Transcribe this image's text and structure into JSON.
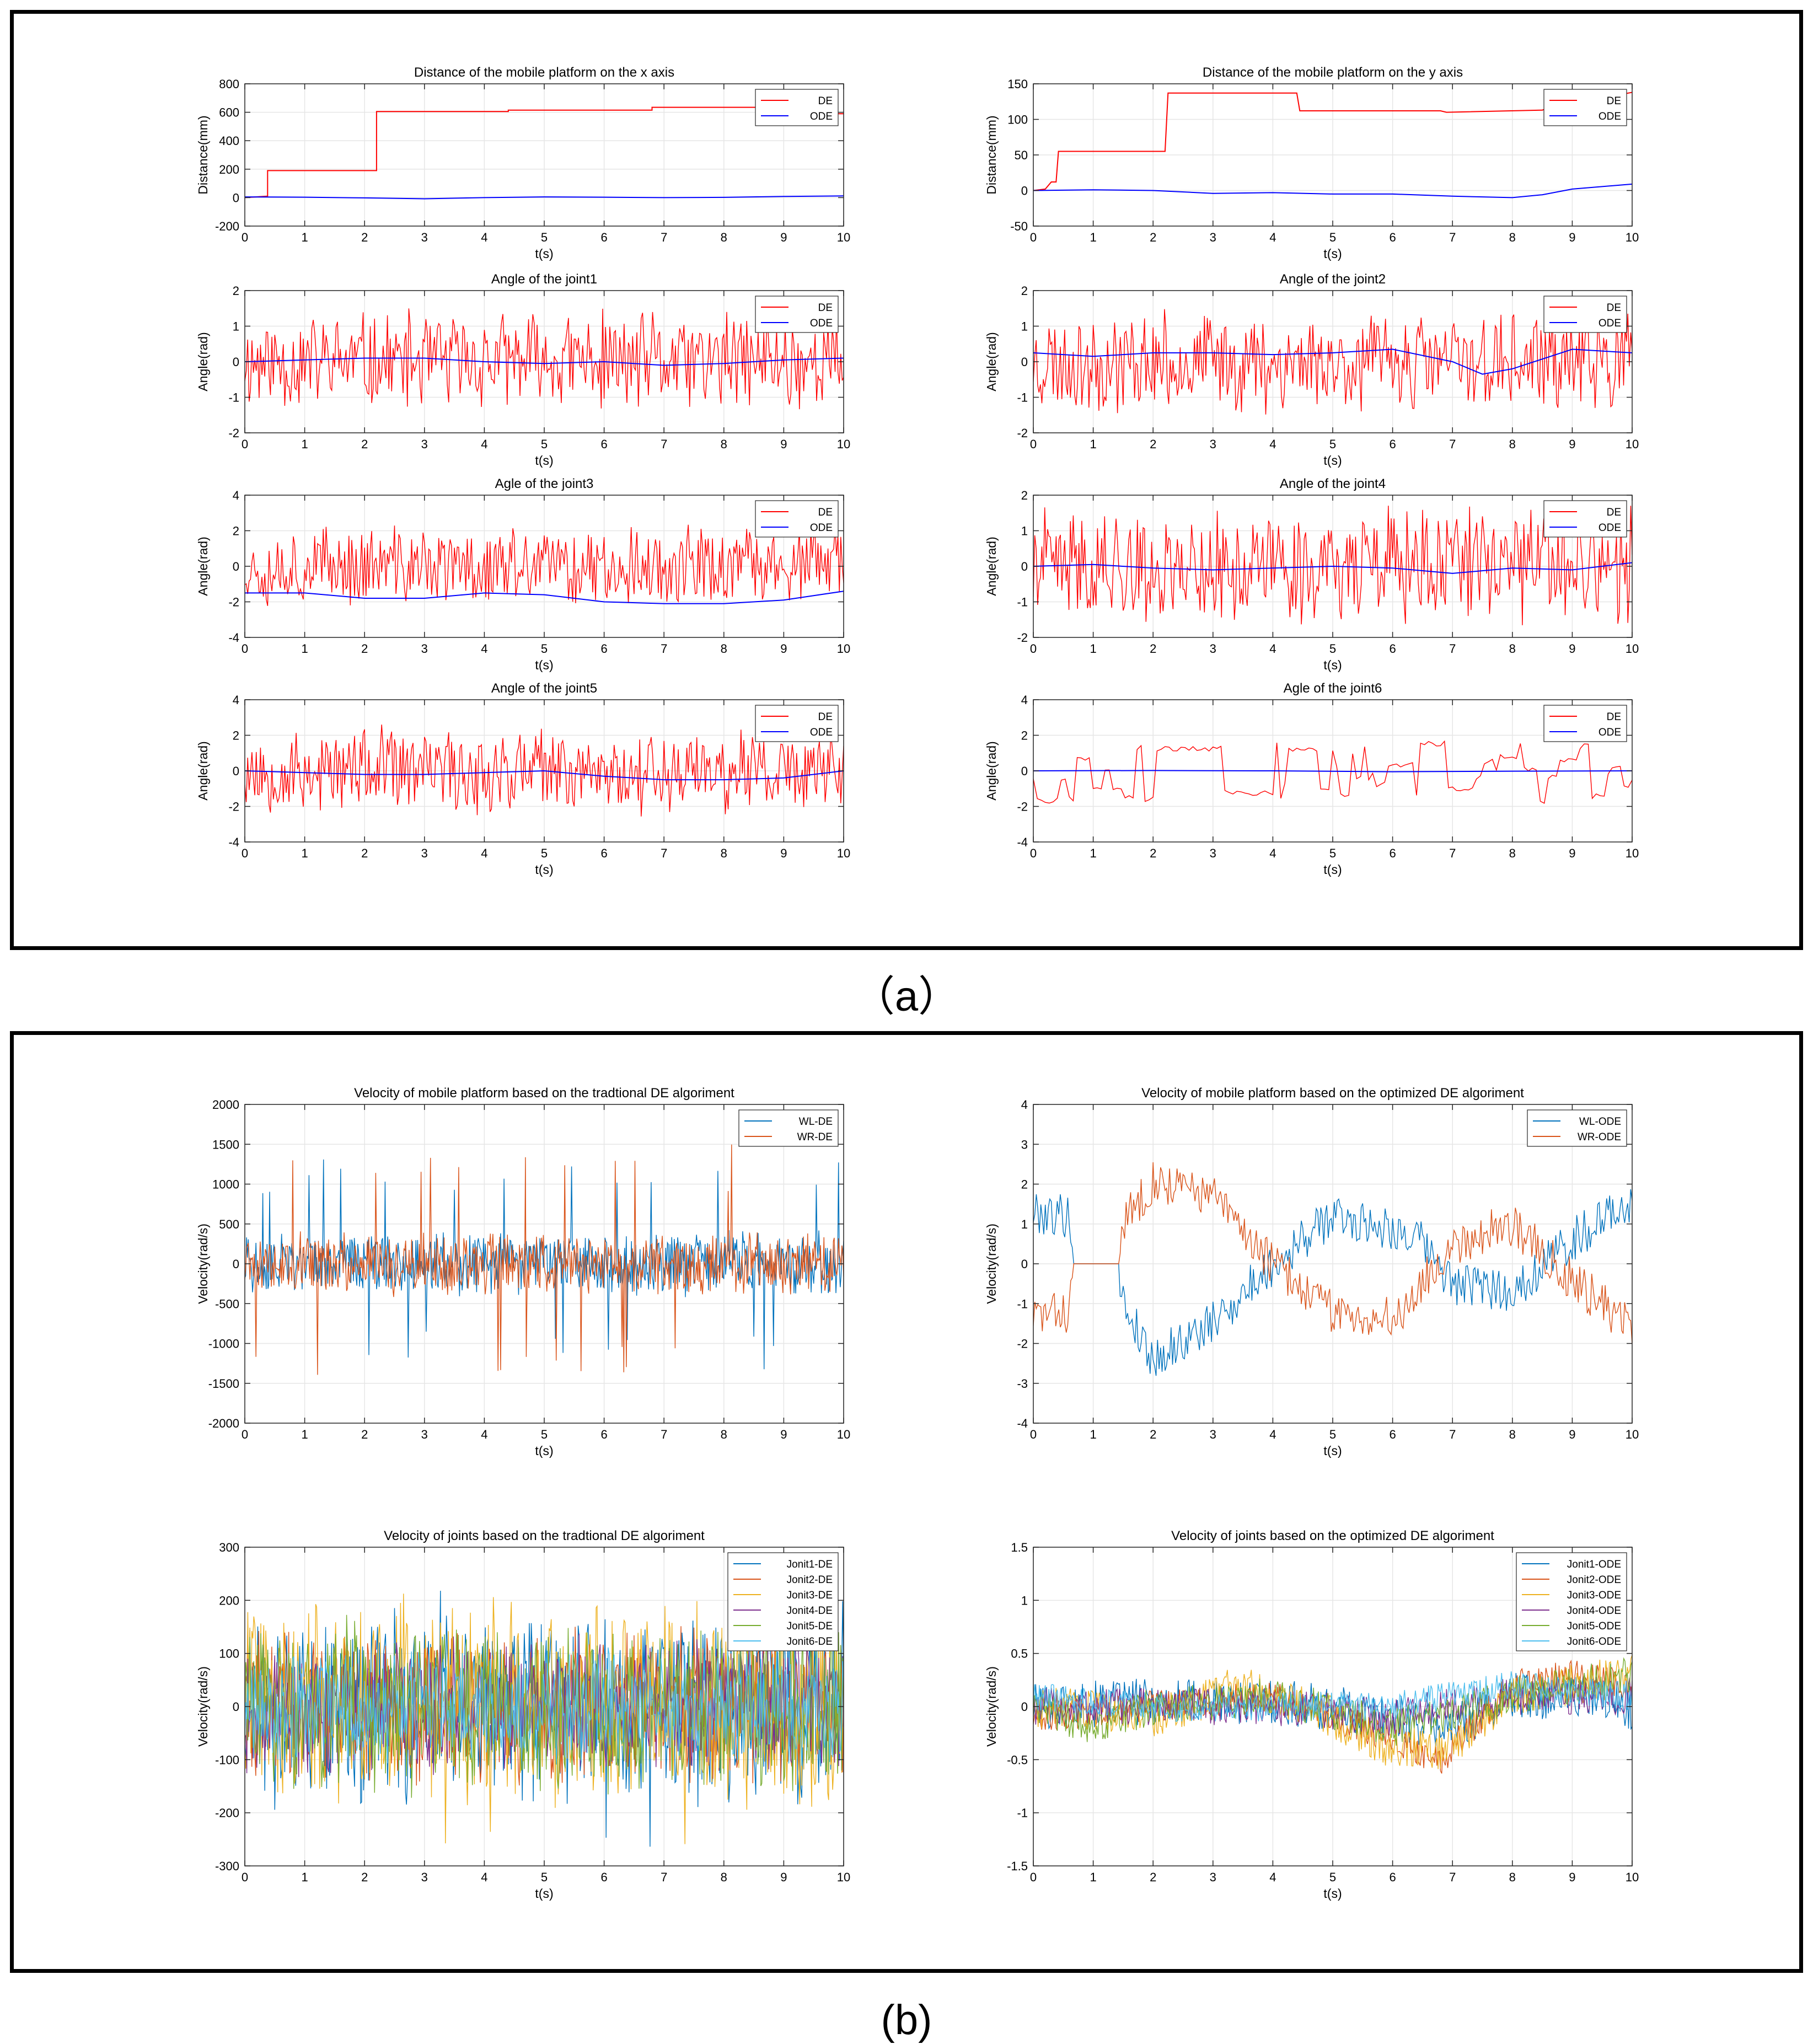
{
  "captions": {
    "a": "（a）",
    "b": "(b)"
  },
  "colors": {
    "DE": "#ff0000",
    "ODE": "#0000ff",
    "blue": "#0072bd",
    "orange": "#d95319",
    "yellow": "#edb120",
    "purple": "#7e2f8e",
    "green": "#77ac30",
    "cyan": "#4dbeee"
  },
  "chart_data": [
    {
      "type": "line",
      "title": "Distance of the mobile platform on the x axis",
      "xlabel": "t(s)",
      "ylabel": "Distance(mm)",
      "xlim": [
        0,
        10
      ],
      "ylim": [
        -200,
        800
      ],
      "xticks": [
        0,
        1,
        2,
        3,
        4,
        5,
        6,
        7,
        8,
        9,
        10
      ],
      "yticks": [
        -200,
        0,
        200,
        400,
        600,
        800
      ],
      "grid": true,
      "legend": "top-right",
      "series": [
        {
          "name": "DE",
          "color": "DE",
          "kind": "poly",
          "x": [
            0,
            0.38,
            0.38,
            2.2,
            2.2,
            4.4,
            4.4,
            6.8,
            6.8,
            9.5,
            9.5,
            10
          ],
          "y": [
            0,
            10,
            190,
            190,
            605,
            605,
            615,
            615,
            635,
            635,
            590,
            590
          ]
        },
        {
          "name": "ODE",
          "color": "ODE",
          "kind": "poly",
          "x": [
            0,
            1,
            2,
            3,
            4,
            5,
            6,
            7,
            8,
            9,
            10
          ],
          "y": [
            5,
            3,
            -2,
            -8,
            0,
            5,
            3,
            0,
            2,
            8,
            12
          ]
        }
      ]
    },
    {
      "type": "line",
      "title": "Distance of the mobile platform on the y axis",
      "xlabel": "t(s)",
      "ylabel": "Distance(mm)",
      "xlim": [
        0,
        10
      ],
      "ylim": [
        -50,
        150
      ],
      "xticks": [
        0,
        1,
        2,
        3,
        4,
        5,
        6,
        7,
        8,
        9,
        10
      ],
      "yticks": [
        -50,
        0,
        50,
        100,
        150
      ],
      "grid": true,
      "legend": "top-right",
      "series": [
        {
          "name": "DE",
          "color": "DE",
          "kind": "poly",
          "x": [
            0,
            0.2,
            0.3,
            0.38,
            0.42,
            2.2,
            2.25,
            4.4,
            4.45,
            6.8,
            6.9,
            8.5,
            8.6,
            10
          ],
          "y": [
            0,
            2,
            12,
            12,
            55,
            55,
            137,
            137,
            112,
            112,
            110,
            113,
            116,
            138
          ]
        },
        {
          "name": "ODE",
          "color": "ODE",
          "kind": "poly",
          "x": [
            0,
            1,
            2,
            3,
            4,
            5,
            6,
            7,
            8,
            8.5,
            9,
            10
          ],
          "y": [
            0,
            1,
            0,
            -4,
            -3,
            -5,
            -5,
            -8,
            -10,
            -6,
            2,
            9
          ]
        }
      ]
    },
    {
      "type": "line",
      "title": "Angle of the joint1",
      "xlabel": "t(s)",
      "ylabel": "Angle(rad)",
      "xlim": [
        0,
        10
      ],
      "ylim": [
        -2,
        2
      ],
      "xticks": [
        0,
        1,
        2,
        3,
        4,
        5,
        6,
        7,
        8,
        9,
        10
      ],
      "yticks": [
        -2,
        -1,
        0,
        1,
        2
      ],
      "grid": true,
      "legend": "top-right",
      "series": [
        {
          "name": "DE",
          "color": "DE",
          "kind": "noise",
          "n": 420,
          "amp": 1.55,
          "seed": 11,
          "sparse": 0
        },
        {
          "name": "ODE",
          "color": "ODE",
          "kind": "poly",
          "x": [
            0,
            1,
            2,
            3,
            4,
            5,
            6,
            7,
            8,
            9,
            10
          ],
          "y": [
            0,
            0.05,
            0.1,
            0.1,
            0,
            -0.05,
            0,
            -0.1,
            -0.05,
            0.05,
            0.1
          ]
        }
      ]
    },
    {
      "type": "line",
      "title": "Angle of the joint2",
      "xlabel": "t(s)",
      "ylabel": "Angle(rad)",
      "xlim": [
        0,
        10
      ],
      "ylim": [
        -2,
        2
      ],
      "xticks": [
        0,
        1,
        2,
        3,
        4,
        5,
        6,
        7,
        8,
        9,
        10
      ],
      "yticks": [
        -2,
        -1,
        0,
        1,
        2
      ],
      "grid": true,
      "legend": "top-right",
      "series": [
        {
          "name": "DE",
          "color": "DE",
          "kind": "noise",
          "n": 420,
          "amp": 1.55,
          "seed": 23,
          "sparse": 0
        },
        {
          "name": "ODE",
          "color": "ODE",
          "kind": "poly",
          "x": [
            0,
            1,
            2,
            3,
            4,
            5,
            6,
            7,
            7.5,
            8,
            9,
            10
          ],
          "y": [
            0.25,
            0.15,
            0.25,
            0.25,
            0.2,
            0.25,
            0.35,
            0,
            -0.35,
            -0.2,
            0.35,
            0.25
          ]
        }
      ]
    },
    {
      "type": "line",
      "title": "Agle of the joint3",
      "xlabel": "t(s)",
      "ylabel": "Angle(rad)",
      "xlim": [
        0,
        10
      ],
      "ylim": [
        -4,
        4
      ],
      "xticks": [
        0,
        1,
        2,
        3,
        4,
        5,
        6,
        7,
        8,
        9,
        10
      ],
      "yticks": [
        -4,
        -2,
        0,
        2,
        4
      ],
      "grid": true,
      "legend": "top-right",
      "series": [
        {
          "name": "DE",
          "color": "DE",
          "kind": "noise",
          "n": 420,
          "amp": 2.5,
          "seed": 37,
          "sparse": 0
        },
        {
          "name": "ODE",
          "color": "ODE",
          "kind": "poly",
          "x": [
            0,
            1,
            2,
            3,
            4,
            5,
            6,
            7,
            8,
            9,
            10
          ],
          "y": [
            -1.5,
            -1.5,
            -1.8,
            -1.8,
            -1.5,
            -1.6,
            -2,
            -2.1,
            -2.1,
            -1.9,
            -1.4
          ]
        }
      ]
    },
    {
      "type": "line",
      "title": "Angle of the joint4",
      "xlabel": "t(s)",
      "ylabel": "Angle(rad)",
      "xlim": [
        0,
        10
      ],
      "ylim": [
        -2,
        2
      ],
      "xticks": [
        0,
        1,
        2,
        3,
        4,
        5,
        6,
        7,
        8,
        9,
        10
      ],
      "yticks": [
        -2,
        -1,
        0,
        1,
        2
      ],
      "grid": true,
      "legend": "top-right",
      "series": [
        {
          "name": "DE",
          "color": "DE",
          "kind": "noise",
          "n": 420,
          "amp": 1.75,
          "seed": 41,
          "sparse": 0
        },
        {
          "name": "ODE",
          "color": "ODE",
          "kind": "poly",
          "x": [
            0,
            1,
            2,
            3,
            4,
            5,
            6,
            7,
            8,
            9,
            10
          ],
          "y": [
            0,
            0.05,
            -0.05,
            -0.1,
            -0.05,
            0,
            -0.05,
            -0.2,
            -0.05,
            -0.1,
            0.1
          ]
        }
      ]
    },
    {
      "type": "line",
      "title": "Angle of the joint5",
      "xlabel": "t(s)",
      "ylabel": "Angle(rad)",
      "xlim": [
        0,
        10
      ],
      "ylim": [
        -4,
        4
      ],
      "xticks": [
        0,
        1,
        2,
        3,
        4,
        5,
        6,
        7,
        8,
        9,
        10
      ],
      "yticks": [
        -4,
        -2,
        0,
        2,
        4
      ],
      "grid": true,
      "legend": "top-right",
      "series": [
        {
          "name": "DE",
          "color": "DE",
          "kind": "noise",
          "n": 420,
          "amp": 2.7,
          "seed": 53,
          "sparse": 0
        },
        {
          "name": "ODE",
          "color": "ODE",
          "kind": "poly",
          "x": [
            0,
            1,
            2,
            3,
            4,
            5,
            6,
            7,
            8,
            9,
            10
          ],
          "y": [
            0,
            -0.1,
            -0.2,
            -0.2,
            -0.1,
            0,
            -0.3,
            -0.5,
            -0.5,
            -0.4,
            0
          ]
        }
      ]
    },
    {
      "type": "line",
      "title": "Agle of the  joint6",
      "xlabel": "t(s)",
      "ylabel": "Angle(rad)",
      "xlim": [
        0,
        10
      ],
      "ylim": [
        -4,
        4
      ],
      "xticks": [
        0,
        1,
        2,
        3,
        4,
        5,
        6,
        7,
        8,
        9,
        10
      ],
      "yticks": [
        -4,
        -2,
        0,
        2,
        4
      ],
      "grid": true,
      "legend": "top-right",
      "series": [
        {
          "name": "DE",
          "color": "DE",
          "kind": "steps",
          "n": 150,
          "amp": 1.6,
          "seed": 67
        },
        {
          "name": "ODE",
          "color": "ODE",
          "kind": "poly",
          "x": [
            0,
            2,
            4,
            6,
            8,
            10
          ],
          "y": [
            0,
            0.02,
            0,
            -0.05,
            -0.02,
            0
          ]
        }
      ]
    },
    {
      "type": "line",
      "title": "Velocity of  mobile platform based on the tradtional DE algoriment",
      "xlabel": "t(s)",
      "ylabel": "Velocity(rad/s)",
      "xlim": [
        0,
        10
      ],
      "ylim": [
        -2000,
        2000
      ],
      "xticks": [
        0,
        1,
        2,
        3,
        4,
        5,
        6,
        7,
        8,
        9,
        10
      ],
      "yticks": [
        -2000,
        -1500,
        -1000,
        -500,
        0,
        500,
        1000,
        1500,
        2000
      ],
      "grid": true,
      "legend": "top-right",
      "series": [
        {
          "name": "WL-DE",
          "color": "blue",
          "kind": "noise",
          "n": 700,
          "amp": 430,
          "seed": 71,
          "sparse": 0.03,
          "spike": 1400
        },
        {
          "name": "WR-DE",
          "color": "orange",
          "kind": "noise",
          "n": 700,
          "amp": 430,
          "seed": 73,
          "sparse": 0.03,
          "spike": 1500
        }
      ]
    },
    {
      "type": "line",
      "title": "Velocity of  mobile platform based on the optimized DE algoriment",
      "xlabel": "t(s)",
      "ylabel": "Velocity(rad/s)",
      "xlim": [
        0,
        10
      ],
      "ylim": [
        -4,
        4
      ],
      "xticks": [
        0,
        1,
        2,
        3,
        4,
        5,
        6,
        7,
        8,
        9,
        10
      ],
      "yticks": [
        -4,
        -3,
        -2,
        -1,
        0,
        1,
        2,
        3,
        4
      ],
      "grid": true,
      "legend": "top-right",
      "series": [
        {
          "name": "WL-ODE",
          "color": "blue",
          "kind": "trend",
          "n": 400,
          "amp": 0.55,
          "seed": 79,
          "x": [
            0,
            0.6,
            0.7,
            1.4,
            1.5,
            2.0,
            3.0,
            4.0,
            5.0,
            6.0,
            6.5,
            7.0,
            8.0,
            9.0,
            10.0
          ],
          "y": [
            1.3,
            1.2,
            0,
            0,
            -1.0,
            -2.4,
            -1.5,
            0.0,
            1.2,
            0.9,
            0.5,
            -0.5,
            -0.7,
            0.6,
            1.6
          ]
        },
        {
          "name": "WR-ODE",
          "color": "orange",
          "kind": "trend",
          "n": 400,
          "amp": 0.55,
          "seed": 83,
          "x": [
            0,
            0.6,
            0.7,
            1.4,
            1.5,
            2.0,
            3.0,
            4.0,
            5.0,
            6.0,
            6.5,
            7.0,
            8.0,
            9.0,
            10.0
          ],
          "y": [
            -1.3,
            -1.2,
            0,
            0,
            1.0,
            2.1,
            1.7,
            0.0,
            -1.2,
            -1.4,
            -0.5,
            0.5,
            1.0,
            -0.4,
            -1.6
          ]
        }
      ]
    },
    {
      "type": "line",
      "title": "Velocity of joints based on the tradtional DE algoriment",
      "xlabel": "t(s)",
      "ylabel": "Velocity(rad/s)",
      "xlim": [
        0,
        10
      ],
      "ylim": [
        -300,
        300
      ],
      "xticks": [
        0,
        1,
        2,
        3,
        4,
        5,
        6,
        7,
        8,
        9,
        10
      ],
      "yticks": [
        -300,
        -200,
        -100,
        0,
        100,
        200,
        300
      ],
      "grid": true,
      "legend": "top-right",
      "series": [
        {
          "name": "Jonit1-DE",
          "color": "blue",
          "kind": "noise",
          "n": 600,
          "amp": 200,
          "seed": 91,
          "sparse": 0.02,
          "spike": 280
        },
        {
          "name": "Jonit2-DE",
          "color": "orange",
          "kind": "noise",
          "n": 600,
          "amp": 160,
          "seed": 92,
          "sparse": 0
        },
        {
          "name": "Jonit3-DE",
          "color": "yellow",
          "kind": "noise",
          "n": 600,
          "amp": 210,
          "seed": 93,
          "sparse": 0.02,
          "spike": 260
        },
        {
          "name": "Jonit4-DE",
          "color": "purple",
          "kind": "noise",
          "n": 600,
          "amp": 140,
          "seed": 94,
          "sparse": 0
        },
        {
          "name": "Jonit5-DE",
          "color": "green",
          "kind": "noise",
          "n": 600,
          "amp": 180,
          "seed": 95,
          "sparse": 0
        },
        {
          "name": "Jonit6-DE",
          "color": "cyan",
          "kind": "noise",
          "n": 600,
          "amp": 120,
          "seed": 96,
          "sparse": 0
        }
      ]
    },
    {
      "type": "line",
      "title": "Velocity of joints based on the optimized DE algoriment",
      "xlabel": "t(s)",
      "ylabel": "Velocity(rad/s)",
      "xlim": [
        0,
        10
      ],
      "ylim": [
        -1.5,
        1.5
      ],
      "xticks": [
        0,
        1,
        2,
        3,
        4,
        5,
        6,
        7,
        8,
        9,
        10
      ],
      "yticks": [
        -1.5,
        -1,
        -0.5,
        0,
        0.5,
        1,
        1.5
      ],
      "grid": true,
      "legend": "top-right",
      "series": [
        {
          "name": "Jonit1-ODE",
          "color": "blue",
          "kind": "trend",
          "n": 500,
          "amp": 0.22,
          "seed": 101,
          "x": [
            0,
            2,
            4,
            6,
            7,
            8,
            9,
            10
          ],
          "y": [
            0,
            0.05,
            0.05,
            -0.1,
            -0.2,
            0.1,
            0.1,
            0
          ]
        },
        {
          "name": "Jonit2-ODE",
          "color": "orange",
          "kind": "trend",
          "n": 500,
          "amp": 0.15,
          "seed": 102,
          "x": [
            0,
            2,
            4,
            6,
            6.8,
            8,
            9,
            10
          ],
          "y": [
            -0.1,
            0,
            0.1,
            -0.3,
            -0.5,
            0.2,
            0.3,
            0.2
          ]
        },
        {
          "name": "Jonit3-ODE",
          "color": "yellow",
          "kind": "trend",
          "n": 500,
          "amp": 0.2,
          "seed": 103,
          "x": [
            0,
            2,
            3.5,
            5,
            6,
            7,
            8,
            9,
            10
          ],
          "y": [
            0,
            -0.1,
            0.2,
            -0.1,
            -0.4,
            -0.4,
            0.1,
            0.2,
            0.3
          ]
        },
        {
          "name": "Jonit4-ODE",
          "color": "purple",
          "kind": "trend",
          "n": 500,
          "amp": 0.18,
          "seed": 104,
          "x": [
            0,
            2,
            4,
            6,
            8,
            10
          ],
          "y": [
            0,
            0,
            0,
            -0.1,
            0.1,
            0.1
          ]
        },
        {
          "name": "Jonit5-ODE",
          "color": "green",
          "kind": "trend",
          "n": 500,
          "amp": 0.18,
          "seed": 105,
          "x": [
            0,
            1,
            2,
            4,
            6,
            8,
            10
          ],
          "y": [
            0,
            -0.2,
            0,
            0.1,
            -0.2,
            0.1,
            0.3
          ]
        },
        {
          "name": "Jonit6-ODE",
          "color": "cyan",
          "kind": "trend",
          "n": 500,
          "amp": 0.14,
          "seed": 106,
          "x": [
            0,
            2,
            4,
            6,
            8,
            10
          ],
          "y": [
            0.1,
            0,
            0,
            0,
            0.2,
            0.1
          ]
        }
      ]
    }
  ]
}
